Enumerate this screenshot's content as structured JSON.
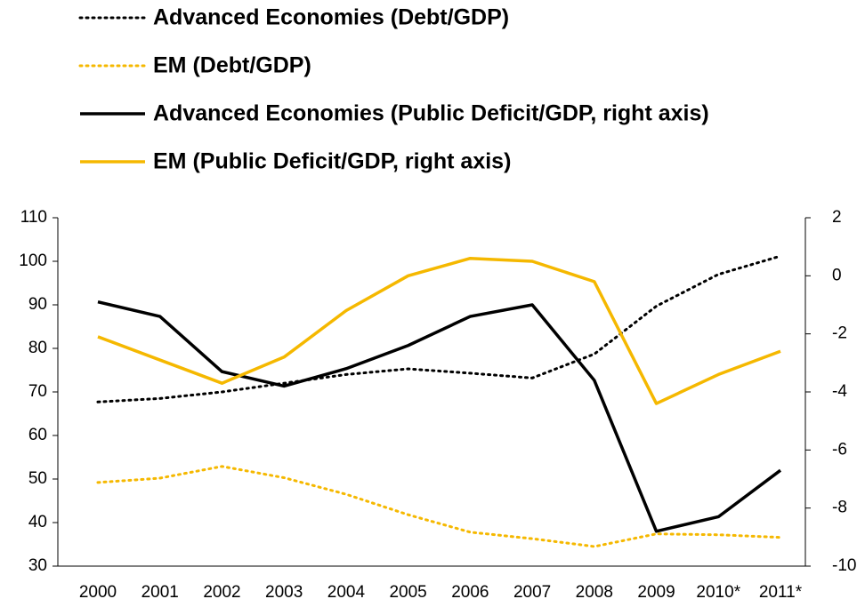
{
  "chart_data": {
    "type": "line",
    "categories": [
      "2000",
      "2001",
      "2002",
      "2003",
      "2004",
      "2005",
      "2006",
      "2007",
      "2008",
      "2009",
      "2010*",
      "2011*"
    ],
    "series": [
      {
        "name": "Advanced Economies (Debt/GDP)",
        "color": "#000000",
        "style": "dotted",
        "axis": "y",
        "values": [
          67.7,
          68.5,
          70,
          72,
          74,
          75.3,
          74.3,
          73.2,
          78.7,
          89.7,
          97,
          101.2
        ]
      },
      {
        "name": "EM (Debt/GDP)",
        "color": "#f5b800",
        "style": "dotted",
        "axis": "y",
        "values": [
          49.2,
          50.2,
          52.9,
          50.3,
          46.5,
          41.8,
          37.8,
          36.3,
          34.5,
          37.4,
          37.2,
          36.6
        ]
      },
      {
        "name": "Advanced Economies (Public Deficit/GDP, right axis)",
        "color": "#000000",
        "style": "solid",
        "axis": "y2",
        "values": [
          -0.9,
          -1.4,
          -3.3,
          -3.8,
          -3.2,
          -2.4,
          -1.4,
          -1.0,
          -3.6,
          -8.8,
          -8.3,
          -6.7
        ]
      },
      {
        "name": "EM (Public Deficit/GDP, right axis)",
        "color": "#f5b800",
        "style": "solid",
        "axis": "y2",
        "values": [
          -2.1,
          -2.9,
          -3.7,
          -2.8,
          -1.2,
          0.0,
          0.6,
          0.5,
          -0.2,
          -4.4,
          -3.4,
          -2.6
        ]
      }
    ],
    "ylim": [
      30,
      110
    ],
    "yticks": [
      30,
      40,
      50,
      60,
      70,
      80,
      90,
      100,
      110
    ],
    "y2lim": [
      -10,
      2
    ],
    "y2ticks": [
      -10,
      -8,
      -6,
      -4,
      -2,
      0,
      2
    ],
    "grid": false,
    "legend": "top-left"
  }
}
